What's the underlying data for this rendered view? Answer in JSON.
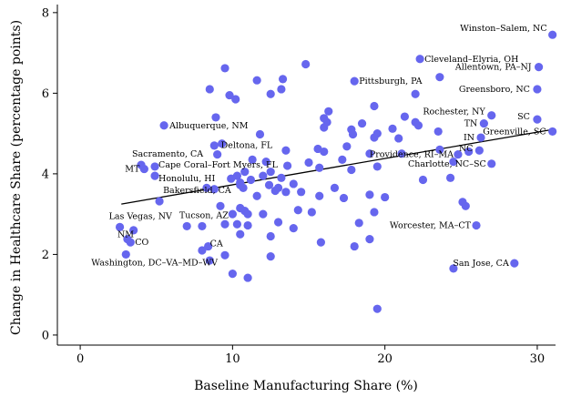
{
  "chart_data": {
    "type": "scatter",
    "xlabel": "Baseline Manufacturing Share (%)",
    "ylabel": "Change in Healthcare Share (percentage points)",
    "xlim": [
      -1.5,
      31.2
    ],
    "ylim": [
      -0.25,
      8.2
    ],
    "xticks": [
      0,
      10,
      20,
      30
    ],
    "yticks": [
      0,
      2,
      4,
      6,
      8
    ],
    "grid": false,
    "point_color": "#6666ee",
    "fit_line": {
      "x": [
        2.7,
        31.0
      ],
      "y": [
        3.25,
        5.1
      ]
    },
    "points": [
      {
        "x": 31.0,
        "y": 7.45,
        "label": "Winston–Salem, NC",
        "anchor": "end",
        "dx": -6,
        "dy": -4
      },
      {
        "x": 22.3,
        "y": 6.85,
        "label": "Cleveland–Elyria, OH",
        "anchor": "start",
        "dx": 5,
        "dy": 3
      },
      {
        "x": 30.1,
        "y": 6.65,
        "label": "Allentown, PA–NJ",
        "anchor": "end",
        "dx": -8,
        "dy": 3
      },
      {
        "x": 23.6,
        "y": 6.4
      },
      {
        "x": 18.0,
        "y": 6.3,
        "label": "Pittsburgh, PA",
        "anchor": "start",
        "dx": 5,
        "dy": 3
      },
      {
        "x": 30.0,
        "y": 6.1,
        "label": "Greensboro, NC",
        "anchor": "end",
        "dx": -8,
        "dy": 3
      },
      {
        "x": 27.0,
        "y": 5.45,
        "label": "Rochester, NY",
        "anchor": "end",
        "dx": -7,
        "dy": -1
      },
      {
        "x": 30.0,
        "y": 5.35,
        "label": "SC",
        "anchor": "end",
        "dx": -8,
        "dy": 0
      },
      {
        "x": 26.5,
        "y": 5.25,
        "label": "TN",
        "anchor": "end",
        "dx": -7,
        "dy": 3
      },
      {
        "x": 31.0,
        "y": 5.05,
        "label": "Greenville, SC",
        "anchor": "end",
        "dx": -7,
        "dy": 3
      },
      {
        "x": 26.3,
        "y": 4.9,
        "label": "IN",
        "anchor": "end",
        "dx": -7,
        "dy": 3
      },
      {
        "x": 26.2,
        "y": 4.58,
        "label": "NC",
        "anchor": "end",
        "dx": -7,
        "dy": 1
      },
      {
        "x": 24.8,
        "y": 4.48,
        "label": "Providence, RI–MA",
        "anchor": "end",
        "dx": -5,
        "dy": 3
      },
      {
        "x": 27.0,
        "y": 4.25,
        "label": "Charlotte, NC–SC",
        "anchor": "end",
        "dx": -6,
        "dy": 3
      },
      {
        "x": 5.5,
        "y": 5.2,
        "label": "Albuquerque, NM",
        "anchor": "start",
        "dx": 6,
        "dy": 3
      },
      {
        "x": 9.0,
        "y": 4.48,
        "label": "Deltona, FL",
        "anchor": "start",
        "dx": 4,
        "dy": -7
      },
      {
        "x": 4.0,
        "y": 4.22,
        "label": "Sacramento, CA",
        "anchor": "start",
        "dx": -10,
        "dy": -9
      },
      {
        "x": 4.2,
        "y": 4.12,
        "label": "MT",
        "anchor": "end",
        "dx": -5,
        "dy": 3
      },
      {
        "x": 4.9,
        "y": 4.18,
        "label": "Cape Coral–Fort Myers, FL",
        "anchor": "start",
        "dx": 4,
        "dy": 1
      },
      {
        "x": 4.9,
        "y": 3.95,
        "label": "Honolulu, HI",
        "anchor": "start",
        "dx": 4,
        "dy": 6
      },
      {
        "x": 5.2,
        "y": 3.32,
        "label": "Bakersfield, CA",
        "anchor": "start",
        "dx": 4,
        "dy": -9
      },
      {
        "x": 2.6,
        "y": 2.68,
        "label": "Las Vegas, NV",
        "anchor": "start",
        "dx": -12,
        "dy": -9
      },
      {
        "x": 3.5,
        "y": 2.6
      },
      {
        "x": 8.0,
        "y": 2.7,
        "label": "Tucson, AZ",
        "anchor": "start",
        "dx": -25,
        "dy": -9
      },
      {
        "x": 3.1,
        "y": 2.38,
        "label": "NM",
        "anchor": "start",
        "dx": -11,
        "dy": -2
      },
      {
        "x": 3.3,
        "y": 2.3,
        "label": "CO",
        "anchor": "start",
        "dx": 5,
        "dy": 3
      },
      {
        "x": 3.0,
        "y": 2.0,
        "label": "Washington, DC–VA–MD–WV",
        "anchor": "start",
        "dx": -38,
        "dy": 12
      },
      {
        "x": 8.4,
        "y": 2.2,
        "label": "CA",
        "anchor": "start",
        "dx": 2,
        "dy": 0
      },
      {
        "x": 26.0,
        "y": 2.72,
        "label": "Worcester, MA–CT",
        "anchor": "end",
        "dx": -6,
        "dy": 3
      },
      {
        "x": 28.5,
        "y": 1.78,
        "label": "San Jose, CA",
        "anchor": "end",
        "dx": -6,
        "dy": 3
      },
      {
        "x": 9.5,
        "y": 6.62
      },
      {
        "x": 14.8,
        "y": 6.72
      },
      {
        "x": 11.6,
        "y": 6.32
      },
      {
        "x": 13.3,
        "y": 6.35
      },
      {
        "x": 8.5,
        "y": 6.1
      },
      {
        "x": 13.2,
        "y": 6.1
      },
      {
        "x": 12.5,
        "y": 5.98
      },
      {
        "x": 9.8,
        "y": 5.95
      },
      {
        "x": 10.2,
        "y": 5.85
      },
      {
        "x": 22.0,
        "y": 5.98
      },
      {
        "x": 19.3,
        "y": 5.68
      },
      {
        "x": 16.3,
        "y": 5.55
      },
      {
        "x": 8.9,
        "y": 5.4
      },
      {
        "x": 16.0,
        "y": 5.38
      },
      {
        "x": 17.8,
        "y": 5.1
      },
      {
        "x": 18.5,
        "y": 5.25
      },
      {
        "x": 16.2,
        "y": 5.28
      },
      {
        "x": 16.0,
        "y": 5.15
      },
      {
        "x": 22.0,
        "y": 5.28
      },
      {
        "x": 22.2,
        "y": 5.2
      },
      {
        "x": 20.5,
        "y": 5.12
      },
      {
        "x": 19.5,
        "y": 5.0
      },
      {
        "x": 11.8,
        "y": 4.98
      },
      {
        "x": 17.9,
        "y": 4.98
      },
      {
        "x": 19.3,
        "y": 4.9
      },
      {
        "x": 20.9,
        "y": 4.88
      },
      {
        "x": 21.3,
        "y": 5.42
      },
      {
        "x": 23.5,
        "y": 5.05
      },
      {
        "x": 8.8,
        "y": 4.7
      },
      {
        "x": 9.3,
        "y": 4.75
      },
      {
        "x": 17.5,
        "y": 4.68
      },
      {
        "x": 15.6,
        "y": 4.62
      },
      {
        "x": 16.0,
        "y": 4.55
      },
      {
        "x": 19.0,
        "y": 4.5
      },
      {
        "x": 11.3,
        "y": 4.35
      },
      {
        "x": 13.5,
        "y": 4.58
      },
      {
        "x": 12.2,
        "y": 4.3
      },
      {
        "x": 19.5,
        "y": 4.18
      },
      {
        "x": 15.0,
        "y": 4.28
      },
      {
        "x": 13.6,
        "y": 4.2
      },
      {
        "x": 15.7,
        "y": 4.15
      },
      {
        "x": 17.2,
        "y": 4.35
      },
      {
        "x": 17.8,
        "y": 4.1
      },
      {
        "x": 23.6,
        "y": 4.6
      },
      {
        "x": 24.5,
        "y": 4.3
      },
      {
        "x": 25.5,
        "y": 4.55
      },
      {
        "x": 21.1,
        "y": 4.5
      },
      {
        "x": 10.8,
        "y": 4.05
      },
      {
        "x": 10.3,
        "y": 3.95
      },
      {
        "x": 11.2,
        "y": 3.85
      },
      {
        "x": 12.5,
        "y": 4.05
      },
      {
        "x": 13.2,
        "y": 3.9
      },
      {
        "x": 9.9,
        "y": 3.88
      },
      {
        "x": 10.5,
        "y": 3.78
      },
      {
        "x": 12.0,
        "y": 3.95
      },
      {
        "x": 12.4,
        "y": 3.72
      },
      {
        "x": 13.0,
        "y": 3.65
      },
      {
        "x": 14.0,
        "y": 3.75
      },
      {
        "x": 13.5,
        "y": 3.55
      },
      {
        "x": 12.8,
        "y": 3.58
      },
      {
        "x": 14.5,
        "y": 3.55
      },
      {
        "x": 15.7,
        "y": 3.45
      },
      {
        "x": 16.7,
        "y": 3.65
      },
      {
        "x": 17.3,
        "y": 3.4
      },
      {
        "x": 19.0,
        "y": 3.48
      },
      {
        "x": 20.0,
        "y": 3.42
      },
      {
        "x": 8.3,
        "y": 3.65
      },
      {
        "x": 8.8,
        "y": 3.62
      },
      {
        "x": 10.5,
        "y": 3.72
      },
      {
        "x": 10.7,
        "y": 3.65
      },
      {
        "x": 11.6,
        "y": 3.45
      },
      {
        "x": 9.2,
        "y": 3.2
      },
      {
        "x": 10.5,
        "y": 3.15
      },
      {
        "x": 10.8,
        "y": 3.08
      },
      {
        "x": 14.3,
        "y": 3.1
      },
      {
        "x": 15.2,
        "y": 3.05
      },
      {
        "x": 19.3,
        "y": 3.05
      },
      {
        "x": 22.5,
        "y": 3.85
      },
      {
        "x": 24.3,
        "y": 3.9
      },
      {
        "x": 25.1,
        "y": 3.3
      },
      {
        "x": 25.3,
        "y": 3.2
      },
      {
        "x": 10.0,
        "y": 3.0
      },
      {
        "x": 11.0,
        "y": 3.0
      },
      {
        "x": 12.0,
        "y": 3.0
      },
      {
        "x": 9.5,
        "y": 2.75
      },
      {
        "x": 10.3,
        "y": 2.75
      },
      {
        "x": 11.0,
        "y": 2.72
      },
      {
        "x": 13.0,
        "y": 2.8
      },
      {
        "x": 14.0,
        "y": 2.65
      },
      {
        "x": 18.3,
        "y": 2.78
      },
      {
        "x": 7.0,
        "y": 2.7
      },
      {
        "x": 10.5,
        "y": 2.5
      },
      {
        "x": 12.5,
        "y": 2.45
      },
      {
        "x": 15.8,
        "y": 2.3
      },
      {
        "x": 18.0,
        "y": 2.2
      },
      {
        "x": 19.0,
        "y": 2.38
      },
      {
        "x": 8.0,
        "y": 2.1
      },
      {
        "x": 9.5,
        "y": 1.98
      },
      {
        "x": 12.5,
        "y": 1.95
      },
      {
        "x": 8.5,
        "y": 1.85
      },
      {
        "x": 10.0,
        "y": 1.52
      },
      {
        "x": 11.0,
        "y": 1.42
      },
      {
        "x": 24.5,
        "y": 1.65
      },
      {
        "x": 19.5,
        "y": 0.65
      }
    ]
  }
}
